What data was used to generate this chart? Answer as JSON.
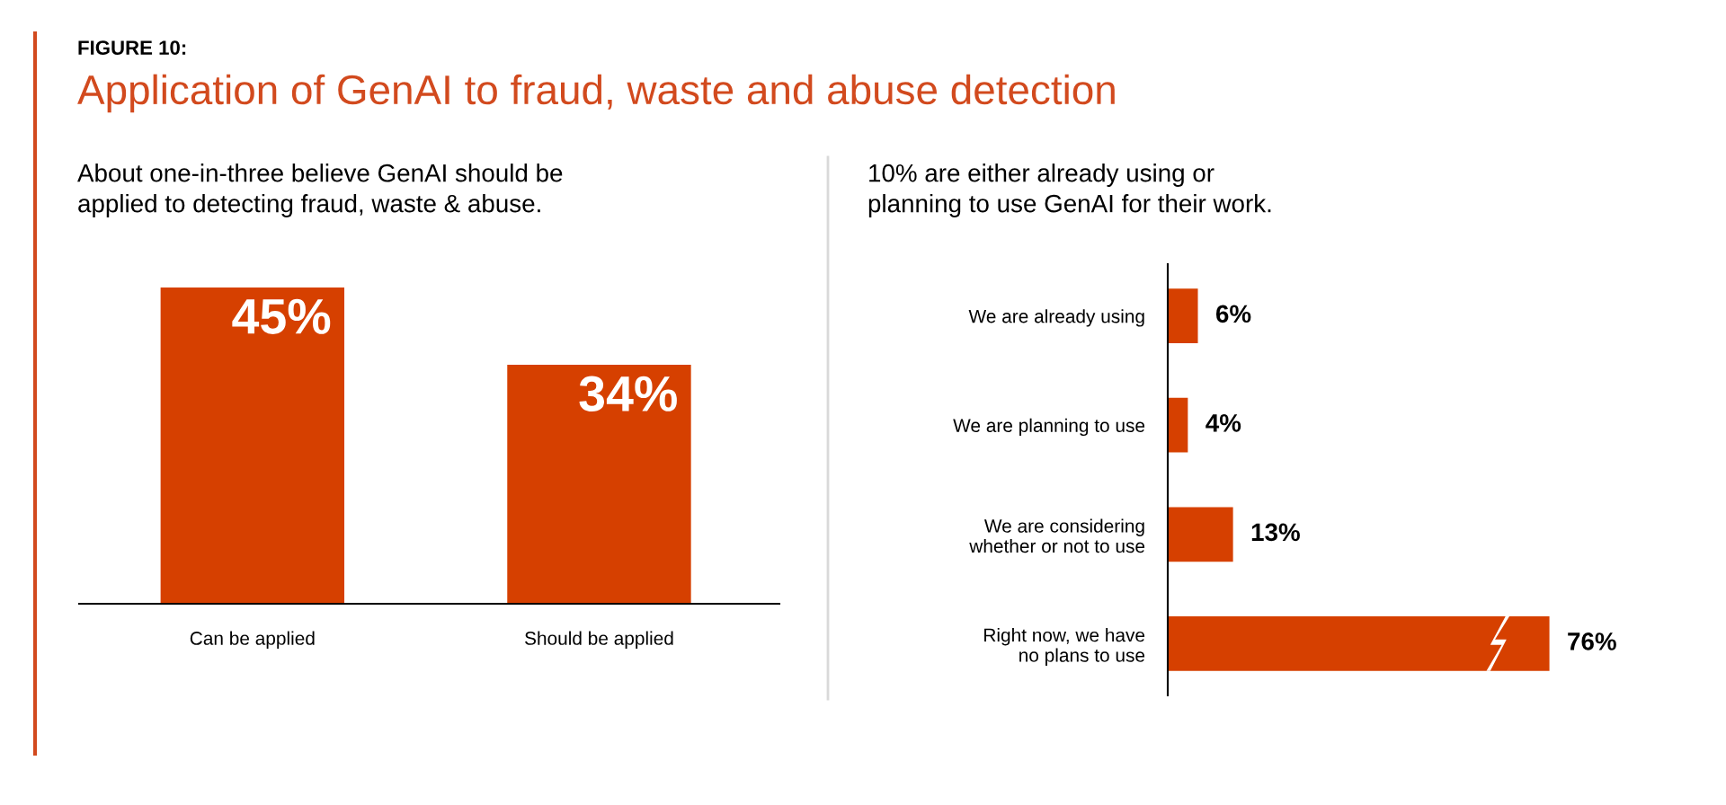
{
  "chart_data": [
    {
      "type": "bar",
      "title": "Application of GenAI to fraud, waste and abuse detection",
      "subtitle": "About one-in-three believe GenAI should be\napplied to detecting fraud, waste & abuse.",
      "annotations": [
        "FIGURE 10:"
      ],
      "categories": [
        "Can be applied",
        "Should be applied"
      ],
      "values": [
        45,
        34
      ],
      "value_labels": [
        "45%",
        "34%"
      ],
      "color": "#d64000",
      "grid": false,
      "legend": false
    },
    {
      "type": "bar",
      "orientation": "horizontal",
      "title": "10% are either already using or\nplanning to use GenAI for their work.",
      "categories": [
        "We are already using",
        "We are planning to use",
        "We are considering\nwhether or not to use",
        "Right now, we have\nno plans to use"
      ],
      "values": [
        6,
        4,
        13,
        76
      ],
      "value_labels": [
        "6%",
        "4%",
        "13%",
        "76%"
      ],
      "color": "#d64000",
      "grid": false,
      "legend": false
    }
  ]
}
